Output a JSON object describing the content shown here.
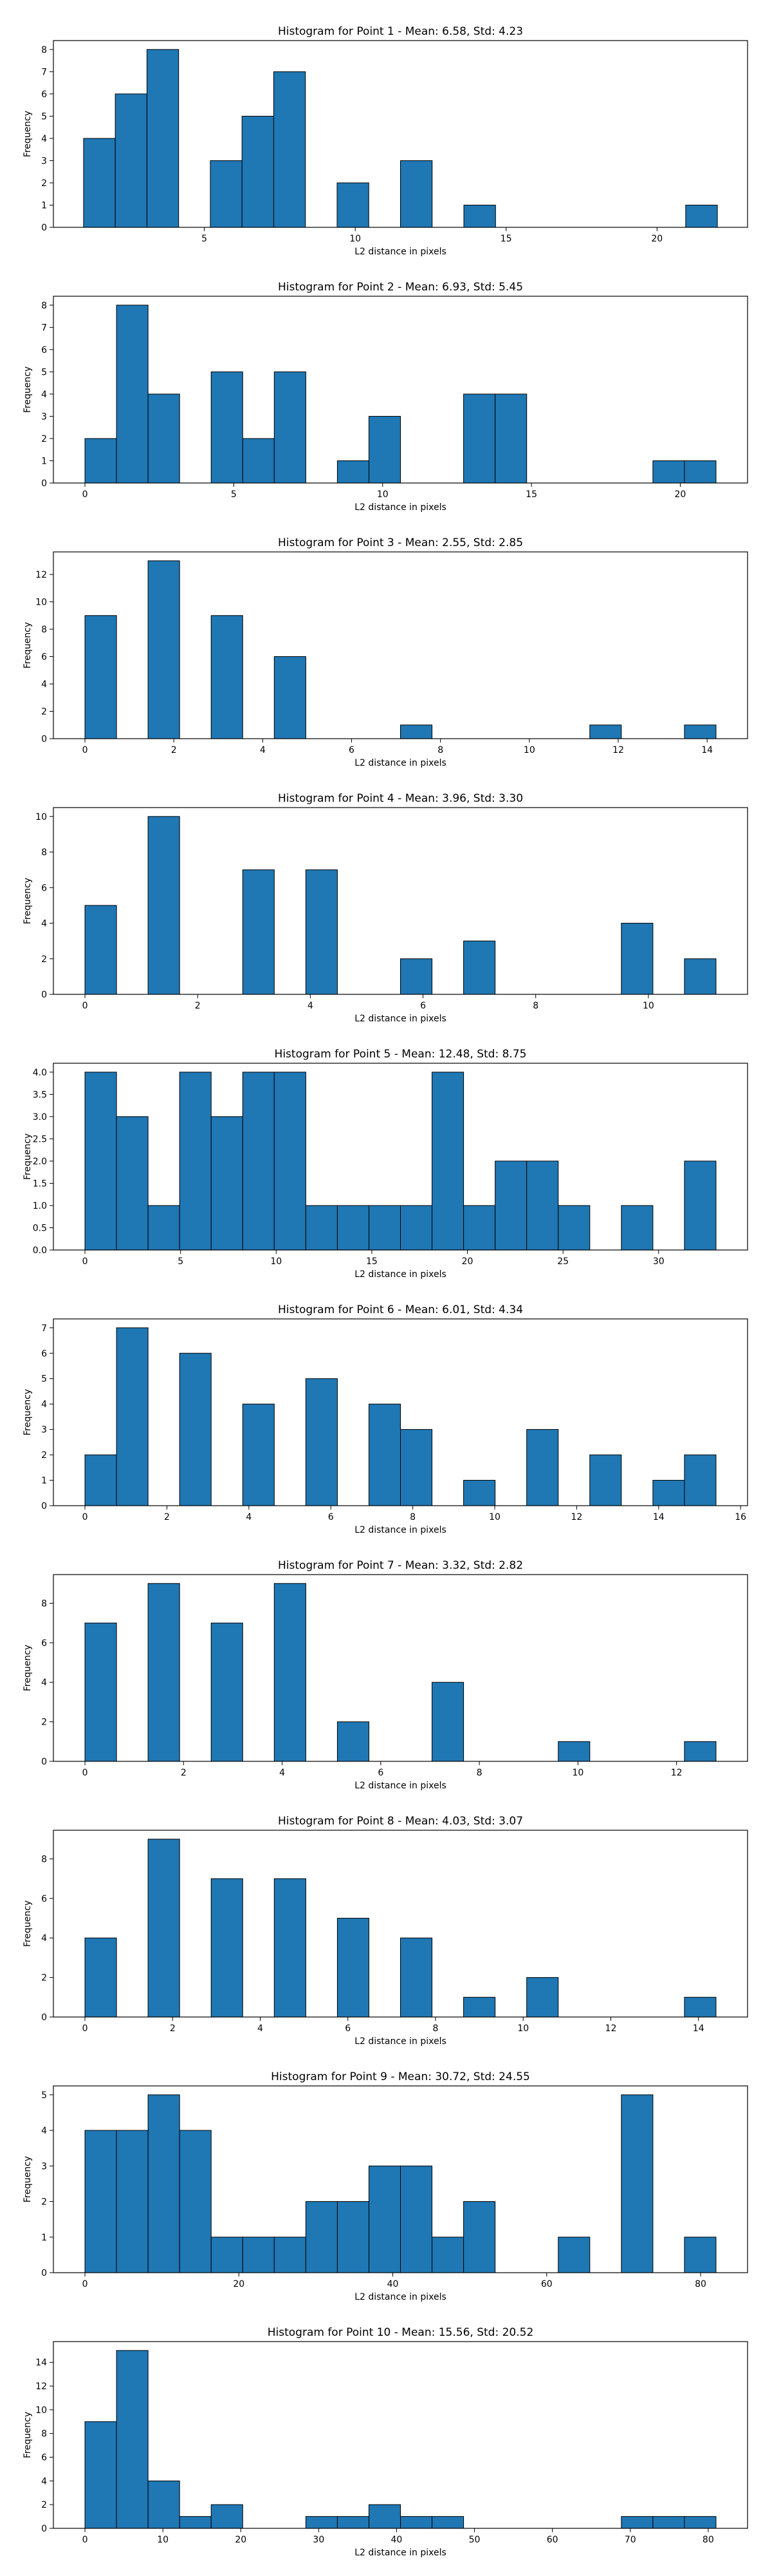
{
  "chart_data": [
    {
      "type": "bar",
      "title": "Histogram for Point 1 - Mean: 6.58, Std: 4.23",
      "xlabel": "L2 distance in pixels",
      "ylabel": "Frequency",
      "bin_edges": [
        1.0,
        2.05,
        3.1,
        4.15,
        5.2,
        6.25,
        7.3,
        8.35,
        9.4,
        10.45,
        11.5,
        12.55,
        13.6,
        14.65,
        15.7,
        16.75,
        17.8,
        18.85,
        19.9,
        20.95,
        22.0
      ],
      "values": [
        4,
        6,
        8,
        0,
        3,
        5,
        7,
        0,
        2,
        0,
        3,
        0,
        1,
        0,
        0,
        0,
        0,
        0,
        0,
        1
      ],
      "xlim": [
        0.0,
        23.0
      ],
      "ylim": [
        0,
        8.4
      ],
      "xticks": [
        5,
        10,
        15,
        20
      ],
      "yticks": [
        0,
        1,
        2,
        3,
        4,
        5,
        6,
        7,
        8
      ],
      "grid": false
    },
    {
      "type": "bar",
      "title": "Histogram for Point 2 - Mean: 6.93, Std: 5.45",
      "xlabel": "L2 distance in pixels",
      "ylabel": "Frequency",
      "bin_edges": [
        0.0,
        1.06,
        2.12,
        3.18,
        4.24,
        5.3,
        6.36,
        7.42,
        8.48,
        9.54,
        10.6,
        11.66,
        12.72,
        13.78,
        14.84,
        15.9,
        16.96,
        18.02,
        19.08,
        20.14,
        21.2
      ],
      "values": [
        2,
        8,
        4,
        0,
        5,
        2,
        5,
        0,
        1,
        3,
        0,
        0,
        4,
        4,
        0,
        0,
        0,
        0,
        1,
        1
      ],
      "xlim": [
        -1.06,
        22.26
      ],
      "ylim": [
        0,
        8.4
      ],
      "xticks": [
        0,
        5,
        10,
        15,
        20
      ],
      "yticks": [
        0,
        1,
        2,
        3,
        4,
        5,
        6,
        7,
        8
      ],
      "grid": false
    },
    {
      "type": "bar",
      "title": "Histogram for Point 3 - Mean: 2.55, Std: 2.85",
      "xlabel": "L2 distance in pixels",
      "ylabel": "Frequency",
      "bin_edges": [
        0.0,
        0.71,
        1.42,
        2.13,
        2.84,
        3.55,
        4.26,
        4.97,
        5.68,
        6.39,
        7.1,
        7.81,
        8.52,
        9.23,
        9.94,
        10.65,
        11.36,
        12.07,
        12.78,
        13.49,
        14.2
      ],
      "values": [
        9,
        0,
        13,
        0,
        9,
        0,
        6,
        0,
        0,
        0,
        1,
        0,
        0,
        0,
        0,
        0,
        1,
        0,
        0,
        1
      ],
      "xlim": [
        -0.71,
        14.91
      ],
      "ylim": [
        0,
        13.65
      ],
      "xticks": [
        0,
        2,
        4,
        6,
        8,
        10,
        12,
        14
      ],
      "yticks": [
        0,
        2,
        4,
        6,
        8,
        10,
        12
      ],
      "grid": false
    },
    {
      "type": "bar",
      "title": "Histogram for Point 4 - Mean: 3.96, Std: 3.30",
      "xlabel": "L2 distance in pixels",
      "ylabel": "Frequency",
      "bin_edges": [
        0.0,
        0.56,
        1.12,
        1.68,
        2.24,
        2.8,
        3.36,
        3.92,
        4.48,
        5.04,
        5.6,
        6.16,
        6.72,
        7.28,
        7.84,
        8.4,
        8.96,
        9.52,
        10.08,
        10.64,
        11.2
      ],
      "values": [
        5,
        0,
        10,
        0,
        0,
        7,
        0,
        7,
        0,
        0,
        2,
        0,
        3,
        0,
        0,
        0,
        0,
        4,
        0,
        2
      ],
      "xlim": [
        -0.56,
        11.76
      ],
      "ylim": [
        0,
        10.5
      ],
      "xticks": [
        0,
        2,
        4,
        6,
        8,
        10
      ],
      "yticks": [
        0,
        2,
        4,
        6,
        8,
        10
      ],
      "grid": false
    },
    {
      "type": "bar",
      "title": "Histogram for Point 5 - Mean: 12.48, Std: 8.75",
      "xlabel": "L2 distance in pixels",
      "ylabel": "Frequency",
      "bin_edges": [
        0.0,
        1.65,
        3.3,
        4.95,
        6.6,
        8.25,
        9.9,
        11.55,
        13.2,
        14.85,
        16.5,
        18.15,
        19.8,
        21.45,
        23.1,
        24.75,
        26.4,
        28.05,
        29.7,
        31.35,
        33.0
      ],
      "values": [
        4,
        3,
        1,
        4,
        3,
        4,
        4,
        1,
        1,
        1,
        1,
        4,
        1,
        2,
        2,
        1,
        0,
        1,
        0,
        2
      ],
      "xlim": [
        -1.65,
        34.65
      ],
      "ylim": [
        0,
        4.2
      ],
      "xticks": [
        0,
        5,
        10,
        15,
        20,
        25,
        30
      ],
      "yticks": [
        0.0,
        0.5,
        1.0,
        1.5,
        2.0,
        2.5,
        3.0,
        3.5,
        4.0
      ],
      "ytick_labels": [
        "0.0",
        "0.5",
        "1.0",
        "1.5",
        "2.0",
        "2.5",
        "3.0",
        "3.5",
        "4.0"
      ],
      "grid": false
    },
    {
      "type": "bar",
      "title": "Histogram for Point 6 - Mean: 6.01, Std: 4.34",
      "xlabel": "L2 distance in pixels",
      "ylabel": "Frequency",
      "bin_edges": [
        0.0,
        0.77,
        1.54,
        2.31,
        3.08,
        3.85,
        4.62,
        5.39,
        6.16,
        6.93,
        7.7,
        8.47,
        9.24,
        10.01,
        10.78,
        11.55,
        12.32,
        13.09,
        13.86,
        14.63,
        15.4
      ],
      "values": [
        2,
        7,
        0,
        6,
        0,
        4,
        0,
        5,
        0,
        4,
        3,
        0,
        1,
        0,
        3,
        0,
        2,
        0,
        1,
        2
      ],
      "xlim": [
        -0.77,
        16.17
      ],
      "ylim": [
        0,
        7.35
      ],
      "xticks": [
        0,
        2,
        4,
        6,
        8,
        10,
        12,
        14,
        16
      ],
      "yticks": [
        0,
        1,
        2,
        3,
        4,
        5,
        6,
        7
      ],
      "grid": false
    },
    {
      "type": "bar",
      "title": "Histogram for Point 7 - Mean: 3.32, Std: 2.82",
      "xlabel": "L2 distance in pixels",
      "ylabel": "Frequency",
      "bin_edges": [
        0.0,
        0.64,
        1.28,
        1.92,
        2.56,
        3.2,
        3.84,
        4.48,
        5.12,
        5.76,
        6.4,
        7.04,
        7.68,
        8.32,
        8.96,
        9.6,
        10.24,
        10.88,
        11.52,
        12.16,
        12.8
      ],
      "values": [
        7,
        0,
        9,
        0,
        7,
        0,
        9,
        0,
        2,
        0,
        0,
        4,
        0,
        0,
        0,
        1,
        0,
        0,
        0,
        1
      ],
      "xlim": [
        -0.64,
        13.44
      ],
      "ylim": [
        0,
        9.45
      ],
      "xticks": [
        0,
        2,
        4,
        6,
        8,
        10,
        12
      ],
      "yticks": [
        0,
        2,
        4,
        6,
        8
      ],
      "grid": false
    },
    {
      "type": "bar",
      "title": "Histogram for Point 8 - Mean: 4.03, Std: 3.07",
      "xlabel": "L2 distance in pixels",
      "ylabel": "Frequency",
      "bin_edges": [
        0.0,
        0.72,
        1.44,
        2.16,
        2.88,
        3.6,
        4.32,
        5.04,
        5.76,
        6.48,
        7.2,
        7.92,
        8.64,
        9.36,
        10.08,
        10.8,
        11.52,
        12.24,
        12.96,
        13.68,
        14.4
      ],
      "values": [
        4,
        0,
        9,
        0,
        7,
        0,
        7,
        0,
        5,
        0,
        4,
        0,
        1,
        0,
        2,
        0,
        0,
        0,
        0,
        1
      ],
      "xlim": [
        -0.72,
        15.12
      ],
      "ylim": [
        0,
        9.45
      ],
      "xticks": [
        0,
        2,
        4,
        6,
        8,
        10,
        12,
        14
      ],
      "yticks": [
        0,
        2,
        4,
        6,
        8
      ],
      "grid": false
    },
    {
      "type": "bar",
      "title": "Histogram for Point 9 - Mean: 30.72, Std: 24.55",
      "xlabel": "L2 distance in pixels",
      "ylabel": "Frequency",
      "bin_edges": [
        0.0,
        4.1,
        8.2,
        12.3,
        16.4,
        20.5,
        24.6,
        28.7,
        32.8,
        36.9,
        41.0,
        45.1,
        49.2,
        53.3,
        57.4,
        61.5,
        65.6,
        69.7,
        73.8,
        77.9,
        82.0
      ],
      "values": [
        4,
        4,
        5,
        4,
        1,
        1,
        1,
        2,
        2,
        3,
        3,
        1,
        2,
        0,
        0,
        1,
        0,
        5,
        0,
        1
      ],
      "xlim": [
        -4.1,
        86.1
      ],
      "ylim": [
        0,
        5.25
      ],
      "xticks": [
        0,
        20,
        40,
        60,
        80
      ],
      "yticks": [
        0,
        1,
        2,
        3,
        4,
        5
      ],
      "grid": false
    },
    {
      "type": "bar",
      "title": "Histogram for Point 10 - Mean: 15.56, Std: 20.52",
      "xlabel": "L2 distance in pixels",
      "ylabel": "Frequency",
      "bin_edges": [
        0.0,
        4.05,
        8.1,
        12.15,
        16.2,
        20.25,
        24.3,
        28.35,
        32.4,
        36.45,
        40.5,
        44.55,
        48.6,
        52.65,
        56.7,
        60.75,
        64.8,
        68.85,
        72.9,
        76.95,
        81.0
      ],
      "values": [
        9,
        15,
        4,
        1,
        2,
        0,
        0,
        1,
        1,
        2,
        1,
        1,
        0,
        0,
        0,
        0,
        0,
        1,
        1,
        1
      ],
      "xlim": [
        -4.05,
        85.05
      ],
      "ylim": [
        0,
        15.75
      ],
      "xticks": [
        0,
        10,
        20,
        30,
        40,
        50,
        60,
        70,
        80
      ],
      "yticks": [
        0,
        2,
        4,
        6,
        8,
        10,
        12,
        14
      ],
      "grid": false
    }
  ],
  "colors": {
    "bar_fill": "#1f77b4",
    "bar_edge": "#000000",
    "axes": "#000000",
    "background": "#ffffff"
  }
}
